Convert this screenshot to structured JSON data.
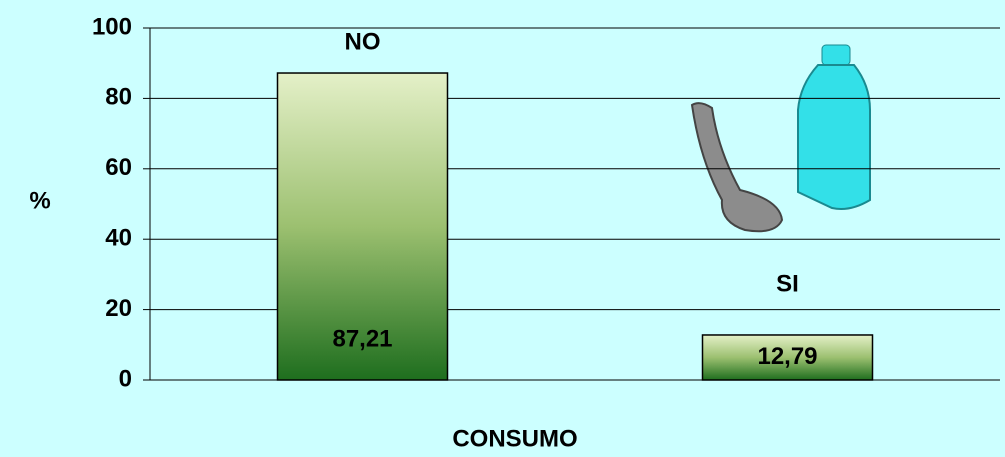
{
  "chart_data": {
    "type": "bar",
    "categories": [
      "NO",
      "SI"
    ],
    "values": [
      87.21,
      12.79
    ],
    "value_labels": [
      "87,21",
      "12,79"
    ],
    "ylabel": "%",
    "xlabel": "CONSUMO",
    "ylim": [
      0,
      100
    ],
    "yticks": [
      0,
      20,
      40,
      60,
      80,
      100
    ],
    "grid": true,
    "color": "#1e6e1e"
  }
}
